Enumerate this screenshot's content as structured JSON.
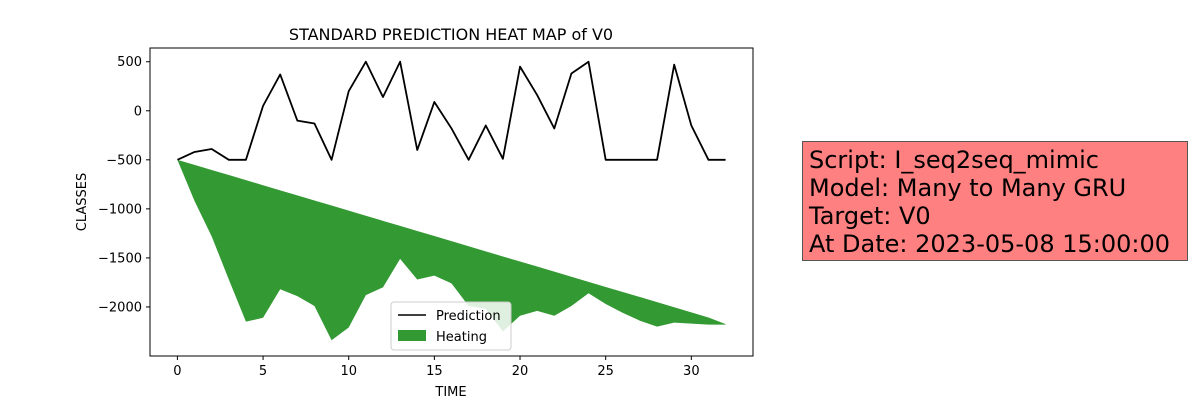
{
  "chart_data": {
    "type": "line",
    "title": "STANDARD PREDICTION HEAT MAP of V0",
    "xlabel": "TIME",
    "ylabel": "CLASSES",
    "xlim": [
      -1.6,
      33.6
    ],
    "ylim": [
      -2500,
      640
    ],
    "xticks": [
      0,
      5,
      10,
      15,
      20,
      25,
      30
    ],
    "yticks": [
      500,
      0,
      -500,
      -1000,
      -1500,
      -2000
    ],
    "ytick_labels": [
      "500",
      "0",
      "−500",
      "−1000",
      "−1500",
      "−2000"
    ],
    "grid": false,
    "legend_position": "lower-center",
    "series": [
      {
        "name": "Prediction",
        "kind": "line",
        "color": "#000000",
        "x": [
          0,
          1,
          2,
          3,
          4,
          5,
          6,
          7,
          8,
          9,
          10,
          11,
          12,
          13,
          14,
          15,
          16,
          17,
          18,
          19,
          20,
          21,
          22,
          23,
          24,
          25,
          26,
          27,
          28,
          29,
          30,
          31,
          32
        ],
        "y": [
          -500,
          -420,
          -390,
          -500,
          -500,
          50,
          370,
          -100,
          -130,
          -500,
          200,
          500,
          140,
          500,
          -400,
          90,
          -180,
          -500,
          -150,
          -490,
          450,
          160,
          -180,
          380,
          500,
          -500,
          -500,
          -500,
          -500,
          470,
          -150,
          -500,
          -500
        ]
      },
      {
        "name": "Heating",
        "kind": "fill_between",
        "color": "#339933",
        "x": [
          0,
          1,
          2,
          3,
          4,
          5,
          6,
          7,
          8,
          9,
          10,
          11,
          12,
          13,
          14,
          15,
          16,
          17,
          18,
          19,
          20,
          21,
          22,
          23,
          24,
          25,
          26,
          27,
          28,
          29,
          30,
          31,
          32
        ],
        "upper": [
          -500,
          -552,
          -604,
          -655,
          -707,
          -759,
          -811,
          -863,
          -915,
          -966,
          -1018,
          -1070,
          -1122,
          -1174,
          -1226,
          -1277,
          -1329,
          -1381,
          -1433,
          -1485,
          -1537,
          -1588,
          -1640,
          -1692,
          -1744,
          -1796,
          -1848,
          -1899,
          -1951,
          -2003,
          -2055,
          -2107,
          -2175
        ],
        "lower": [
          -500,
          -920,
          -1280,
          -1720,
          -2150,
          -2110,
          -1820,
          -1890,
          -1990,
          -2340,
          -2210,
          -1880,
          -1800,
          -1510,
          -1720,
          -1680,
          -1760,
          -1990,
          -2020,
          -2250,
          -2090,
          -2040,
          -2090,
          -1990,
          -1860,
          -1970,
          -2060,
          -2140,
          -2200,
          -2160,
          -2170,
          -2180,
          -2180
        ]
      }
    ]
  },
  "info_box": {
    "lines": [
      "Script: I_seq2seq_mimic",
      "Model: Many to Many GRU",
      "Target: V0",
      "At Date: 2023-05-08 15:00:00"
    ],
    "background": "#ff8080"
  }
}
